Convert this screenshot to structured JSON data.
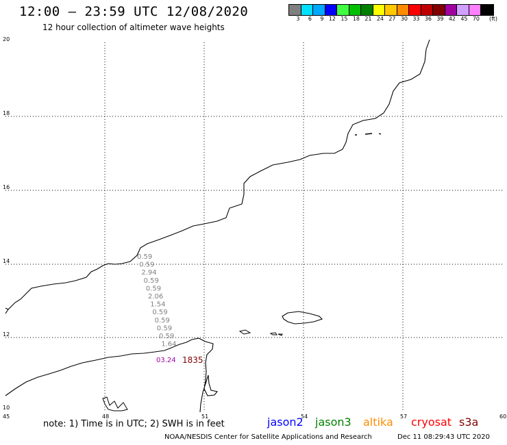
{
  "header": {
    "title": "12:00 — 23:59 UTC 12/08/2020",
    "subtitle": "12 hour collection of altimeter wave heights"
  },
  "legend": {
    "colors": [
      "#808080",
      "#00e0ff",
      "#00a8ff",
      "#0000ff",
      "#40ff40",
      "#00c000",
      "#008000",
      "#ffff00",
      "#ffc800",
      "#ff8c00",
      "#ff0000",
      "#c00000",
      "#800000",
      "#a000a0",
      "#d0a0ff",
      "#ff80ff",
      "#000000"
    ],
    "labels": [
      "3",
      "6",
      "9",
      "12",
      "15",
      "18",
      "21",
      "24",
      "27",
      "30",
      "33",
      "36",
      "39",
      "42",
      "45",
      "70"
    ],
    "units": "(ft)"
  },
  "map": {
    "lat_labels": [
      "20",
      "18",
      "16",
      "14",
      "12",
      "10"
    ],
    "lon_labels": [
      "45",
      "48",
      "51",
      "54",
      "57",
      "60"
    ],
    "track_values": [
      "0.59",
      "0.59",
      "2.94",
      "0.59",
      "0.59",
      "2.06",
      "1.54",
      "0.59",
      "0.59",
      "0.59",
      "0.59",
      "1.64"
    ],
    "time_label": "1835",
    "track_overlap_label": "03.24"
  },
  "footer": {
    "note": "note: 1) Time is in UTC; 2) SWH is in feet",
    "satellites": [
      {
        "name": "jason2",
        "color": "#0000ff"
      },
      {
        "name": "jason3",
        "color": "#008000"
      },
      {
        "name": "altika",
        "color": "#ff8c00"
      },
      {
        "name": "cryosat",
        "color": "#ff0000"
      },
      {
        "name": "s3a",
        "color": "#800000"
      }
    ],
    "credit": "NOAA/NESDIS Center for Satellite Applications and Research",
    "timestamp": "Dec 11 08:29:43 UTC 2020"
  }
}
